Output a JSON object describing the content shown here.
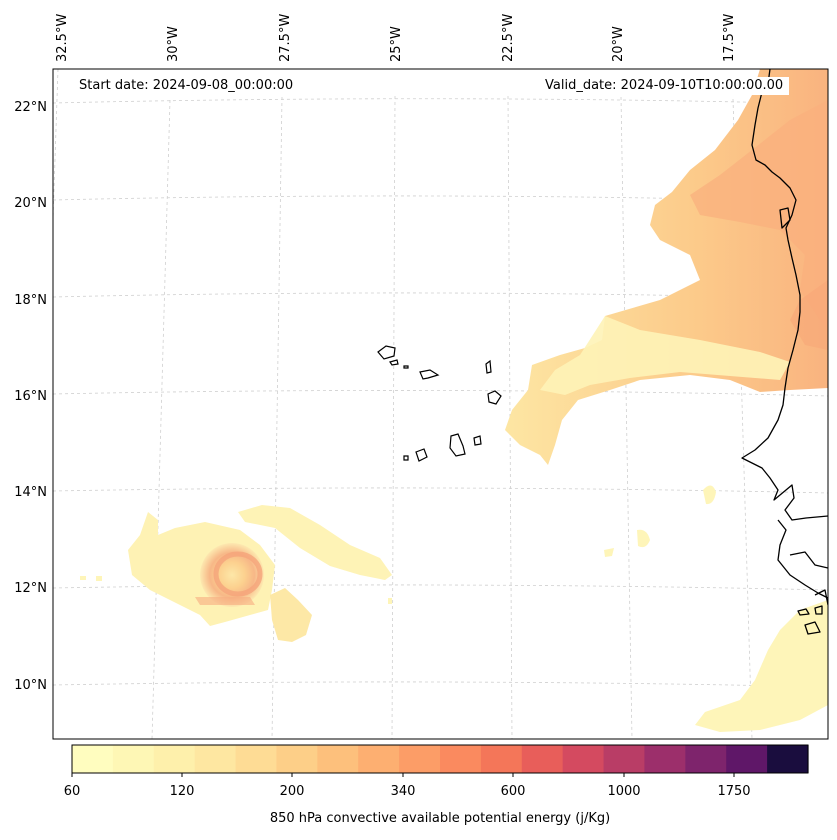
{
  "map": {
    "start_label": "Start date: 2024-09-08_00:00:00",
    "valid_label": "Valid_date: 2024-09-10T10:00:00.00",
    "lon_ticks": [
      "32.5°W",
      "30°W",
      "27.5°W",
      "25°W",
      "22.5°W",
      "20°W",
      "17.5°W"
    ],
    "lat_ticks": [
      "22°N",
      "20°N",
      "18°N",
      "16°N",
      "14°N",
      "12°N",
      "10°N"
    ],
    "coast_color": "#000000",
    "grid_color": "#cccccc"
  },
  "colorbar": {
    "label": "850 hPa convective available potential energy (j/Kg)",
    "tick_labels": [
      "60",
      "120",
      "200",
      "340",
      "600",
      "1000",
      "1750"
    ],
    "colors": [
      "#fffdbf",
      "#fef7b5",
      "#fef0ab",
      "#fee7a1",
      "#fedc95",
      "#fdcf88",
      "#fdc07c",
      "#fdaf71",
      "#fc9d67",
      "#fa8a5f",
      "#f47659",
      "#e85e5a",
      "#d44a60",
      "#b93d66",
      "#9c2f6b",
      "#7e246c",
      "#5f1768",
      "#1a0d3e"
    ]
  },
  "features": {
    "islands": "Cape Verde islands",
    "coastline": "West African coast"
  }
}
